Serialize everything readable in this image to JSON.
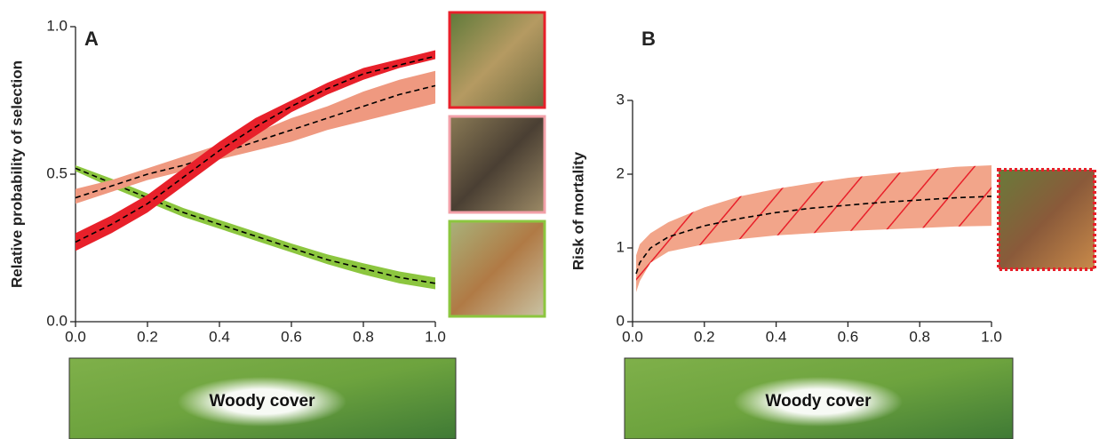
{
  "chart_data": [
    {
      "type": "band-line",
      "panel_label": "A",
      "ylabel": "Relative probability of selection",
      "xlabel": "Woody cover",
      "x": [
        0,
        0.1,
        0.2,
        0.3,
        0.4,
        0.5,
        0.6,
        0.7,
        0.8,
        0.9,
        1.0
      ],
      "xlim": [
        0,
        1
      ],
      "xticks": [
        {
          "value": 0,
          "label": "0.0"
        },
        0.2,
        0.4,
        0.6,
        0.8,
        {
          "value": 1,
          "label": "1.0"
        }
      ],
      "ylim": [
        0,
        1
      ],
      "yticks": [
        {
          "value": 0,
          "label": "0.0"
        },
        0.5,
        {
          "value": 1,
          "label": "1.0"
        }
      ],
      "series": [
        {
          "color": "#8cc63f",
          "values": [
            0.52,
            0.47,
            0.42,
            0.37,
            0.33,
            0.29,
            0.25,
            0.21,
            0.18,
            0.15,
            0.13
          ],
          "lower": [
            0.51,
            0.455,
            0.405,
            0.355,
            0.315,
            0.275,
            0.235,
            0.195,
            0.16,
            0.13,
            0.11
          ],
          "upper": [
            0.53,
            0.485,
            0.435,
            0.385,
            0.345,
            0.305,
            0.265,
            0.228,
            0.198,
            0.17,
            0.15
          ]
        },
        {
          "color": "#ef9980",
          "values": [
            0.42,
            0.46,
            0.5,
            0.53,
            0.57,
            0.61,
            0.65,
            0.69,
            0.73,
            0.77,
            0.8
          ],
          "lower": [
            0.4,
            0.44,
            0.48,
            0.51,
            0.55,
            0.58,
            0.61,
            0.65,
            0.68,
            0.71,
            0.74
          ],
          "upper": [
            0.45,
            0.48,
            0.52,
            0.56,
            0.6,
            0.64,
            0.69,
            0.73,
            0.78,
            0.82,
            0.85
          ]
        },
        {
          "color": "#e8202a",
          "values": [
            0.27,
            0.33,
            0.4,
            0.49,
            0.58,
            0.66,
            0.73,
            0.79,
            0.84,
            0.87,
            0.9
          ],
          "lower": [
            0.24,
            0.3,
            0.37,
            0.46,
            0.55,
            0.63,
            0.71,
            0.77,
            0.82,
            0.86,
            0.89
          ],
          "upper": [
            0.3,
            0.36,
            0.43,
            0.52,
            0.61,
            0.69,
            0.75,
            0.81,
            0.86,
            0.89,
            0.92
          ]
        }
      ]
    },
    {
      "type": "band-line",
      "panel_label": "B",
      "ylabel": "Risk of mortality",
      "xlabel": "Woody cover",
      "hatch_color": "#e8202a",
      "x": [
        0.01,
        0.02,
        0.05,
        0.1,
        0.2,
        0.3,
        0.4,
        0.5,
        0.6,
        0.7,
        0.8,
        0.9,
        1.0
      ],
      "xlim": [
        0,
        1
      ],
      "xticks": [
        {
          "value": 0,
          "label": "0.0"
        },
        0.2,
        0.4,
        0.6,
        0.8,
        {
          "value": 1,
          "label": "1.0"
        }
      ],
      "ylim": [
        0,
        3
      ],
      "yticks": [
        0,
        1,
        2,
        3
      ],
      "series": [
        {
          "color": "#f2a58a",
          "values": [
            0.65,
            0.8,
            1.0,
            1.15,
            1.3,
            1.4,
            1.48,
            1.54,
            1.58,
            1.62,
            1.65,
            1.68,
            1.7
          ],
          "lower": [
            0.4,
            0.55,
            0.8,
            0.95,
            1.05,
            1.12,
            1.17,
            1.2,
            1.23,
            1.25,
            1.27,
            1.29,
            1.3
          ],
          "upper": [
            0.9,
            1.05,
            1.2,
            1.35,
            1.55,
            1.7,
            1.8,
            1.88,
            1.95,
            2.0,
            2.05,
            2.1,
            2.12
          ]
        }
      ]
    }
  ]
}
